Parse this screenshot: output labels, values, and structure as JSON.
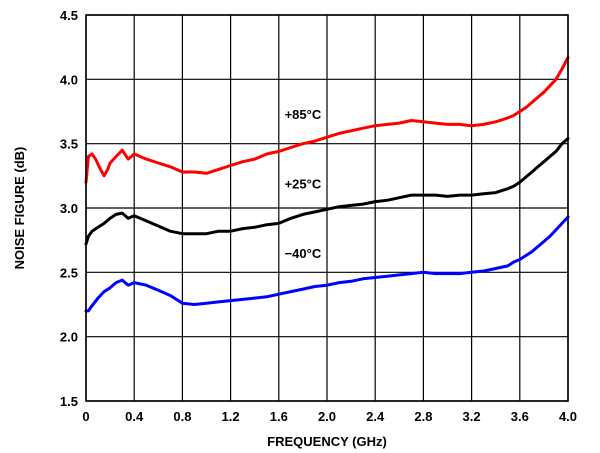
{
  "chart_data": {
    "type": "line",
    "title": "",
    "xlabel": "FREQUENCY (GHz)",
    "ylabel": "NOISE FIGURE (dB)",
    "xlim": [
      0,
      4.0
    ],
    "ylim": [
      1.5,
      4.5
    ],
    "x_ticks": [
      "0",
      "0.4",
      "0.8",
      "1.2",
      "1.6",
      "2.0",
      "2.4",
      "2.8",
      "3.2",
      "3.6",
      "4.0"
    ],
    "y_ticks": [
      "1.5",
      "2.0",
      "2.5",
      "3.0",
      "3.5",
      "4.0",
      "4.5"
    ],
    "grid": true,
    "series": [
      {
        "name": "+85°C",
        "color": "#ff0000",
        "label_at": [
          1.8,
          3.72
        ],
        "x": [
          0.0,
          0.02,
          0.05,
          0.08,
          0.12,
          0.15,
          0.18,
          0.2,
          0.25,
          0.3,
          0.35,
          0.4,
          0.5,
          0.6,
          0.7,
          0.8,
          0.9,
          1.0,
          1.1,
          1.2,
          1.3,
          1.4,
          1.5,
          1.6,
          1.7,
          1.8,
          1.9,
          2.0,
          2.1,
          2.2,
          2.3,
          2.4,
          2.5,
          2.6,
          2.7,
          2.8,
          2.9,
          3.0,
          3.1,
          3.2,
          3.3,
          3.4,
          3.5,
          3.55,
          3.6,
          3.65,
          3.7,
          3.75,
          3.8,
          3.85,
          3.9,
          3.95,
          4.0
        ],
        "values": [
          3.2,
          3.4,
          3.42,
          3.38,
          3.3,
          3.25,
          3.3,
          3.35,
          3.4,
          3.45,
          3.38,
          3.42,
          3.38,
          3.35,
          3.32,
          3.28,
          3.28,
          3.27,
          3.3,
          3.33,
          3.36,
          3.38,
          3.42,
          3.44,
          3.47,
          3.5,
          3.52,
          3.55,
          3.58,
          3.6,
          3.62,
          3.64,
          3.65,
          3.66,
          3.68,
          3.67,
          3.66,
          3.65,
          3.65,
          3.64,
          3.65,
          3.67,
          3.7,
          3.72,
          3.75,
          3.78,
          3.82,
          3.86,
          3.9,
          3.95,
          4.0,
          4.08,
          4.17
        ]
      },
      {
        "name": "+25°C",
        "color": "#000000",
        "label_at": [
          1.8,
          3.18
        ],
        "x": [
          0.0,
          0.02,
          0.05,
          0.1,
          0.15,
          0.2,
          0.25,
          0.3,
          0.35,
          0.4,
          0.5,
          0.6,
          0.7,
          0.8,
          0.9,
          1.0,
          1.1,
          1.2,
          1.3,
          1.4,
          1.5,
          1.6,
          1.7,
          1.8,
          1.9,
          2.0,
          2.1,
          2.2,
          2.3,
          2.4,
          2.5,
          2.6,
          2.7,
          2.8,
          2.9,
          3.0,
          3.1,
          3.2,
          3.3,
          3.4,
          3.5,
          3.55,
          3.6,
          3.65,
          3.7,
          3.75,
          3.8,
          3.85,
          3.9,
          3.95,
          4.0
        ],
        "values": [
          2.72,
          2.78,
          2.82,
          2.85,
          2.88,
          2.92,
          2.95,
          2.96,
          2.92,
          2.94,
          2.9,
          2.86,
          2.82,
          2.8,
          2.8,
          2.8,
          2.82,
          2.82,
          2.84,
          2.85,
          2.87,
          2.88,
          2.92,
          2.95,
          2.97,
          2.99,
          3.01,
          3.02,
          3.03,
          3.05,
          3.06,
          3.08,
          3.1,
          3.1,
          3.1,
          3.09,
          3.1,
          3.1,
          3.11,
          3.12,
          3.15,
          3.17,
          3.2,
          3.24,
          3.28,
          3.32,
          3.36,
          3.4,
          3.44,
          3.5,
          3.54
        ]
      },
      {
        "name": "−40°C",
        "color": "#0000ff",
        "label_at": [
          1.8,
          2.64
        ],
        "x": [
          0.0,
          0.02,
          0.05,
          0.1,
          0.15,
          0.2,
          0.25,
          0.3,
          0.35,
          0.4,
          0.5,
          0.6,
          0.7,
          0.8,
          0.9,
          1.0,
          1.1,
          1.2,
          1.3,
          1.4,
          1.5,
          1.6,
          1.7,
          1.8,
          1.9,
          2.0,
          2.1,
          2.2,
          2.3,
          2.4,
          2.5,
          2.6,
          2.7,
          2.8,
          2.9,
          3.0,
          3.1,
          3.2,
          3.3,
          3.4,
          3.5,
          3.55,
          3.6,
          3.65,
          3.7,
          3.75,
          3.8,
          3.85,
          3.9,
          3.95,
          4.0
        ],
        "values": [
          2.2,
          2.2,
          2.24,
          2.3,
          2.35,
          2.38,
          2.42,
          2.44,
          2.4,
          2.42,
          2.4,
          2.36,
          2.32,
          2.26,
          2.25,
          2.26,
          2.27,
          2.28,
          2.29,
          2.3,
          2.31,
          2.33,
          2.35,
          2.37,
          2.39,
          2.4,
          2.42,
          2.43,
          2.45,
          2.46,
          2.47,
          2.48,
          2.49,
          2.5,
          2.49,
          2.49,
          2.49,
          2.5,
          2.51,
          2.53,
          2.55,
          2.58,
          2.6,
          2.63,
          2.66,
          2.7,
          2.74,
          2.78,
          2.83,
          2.88,
          2.93
        ]
      }
    ]
  }
}
